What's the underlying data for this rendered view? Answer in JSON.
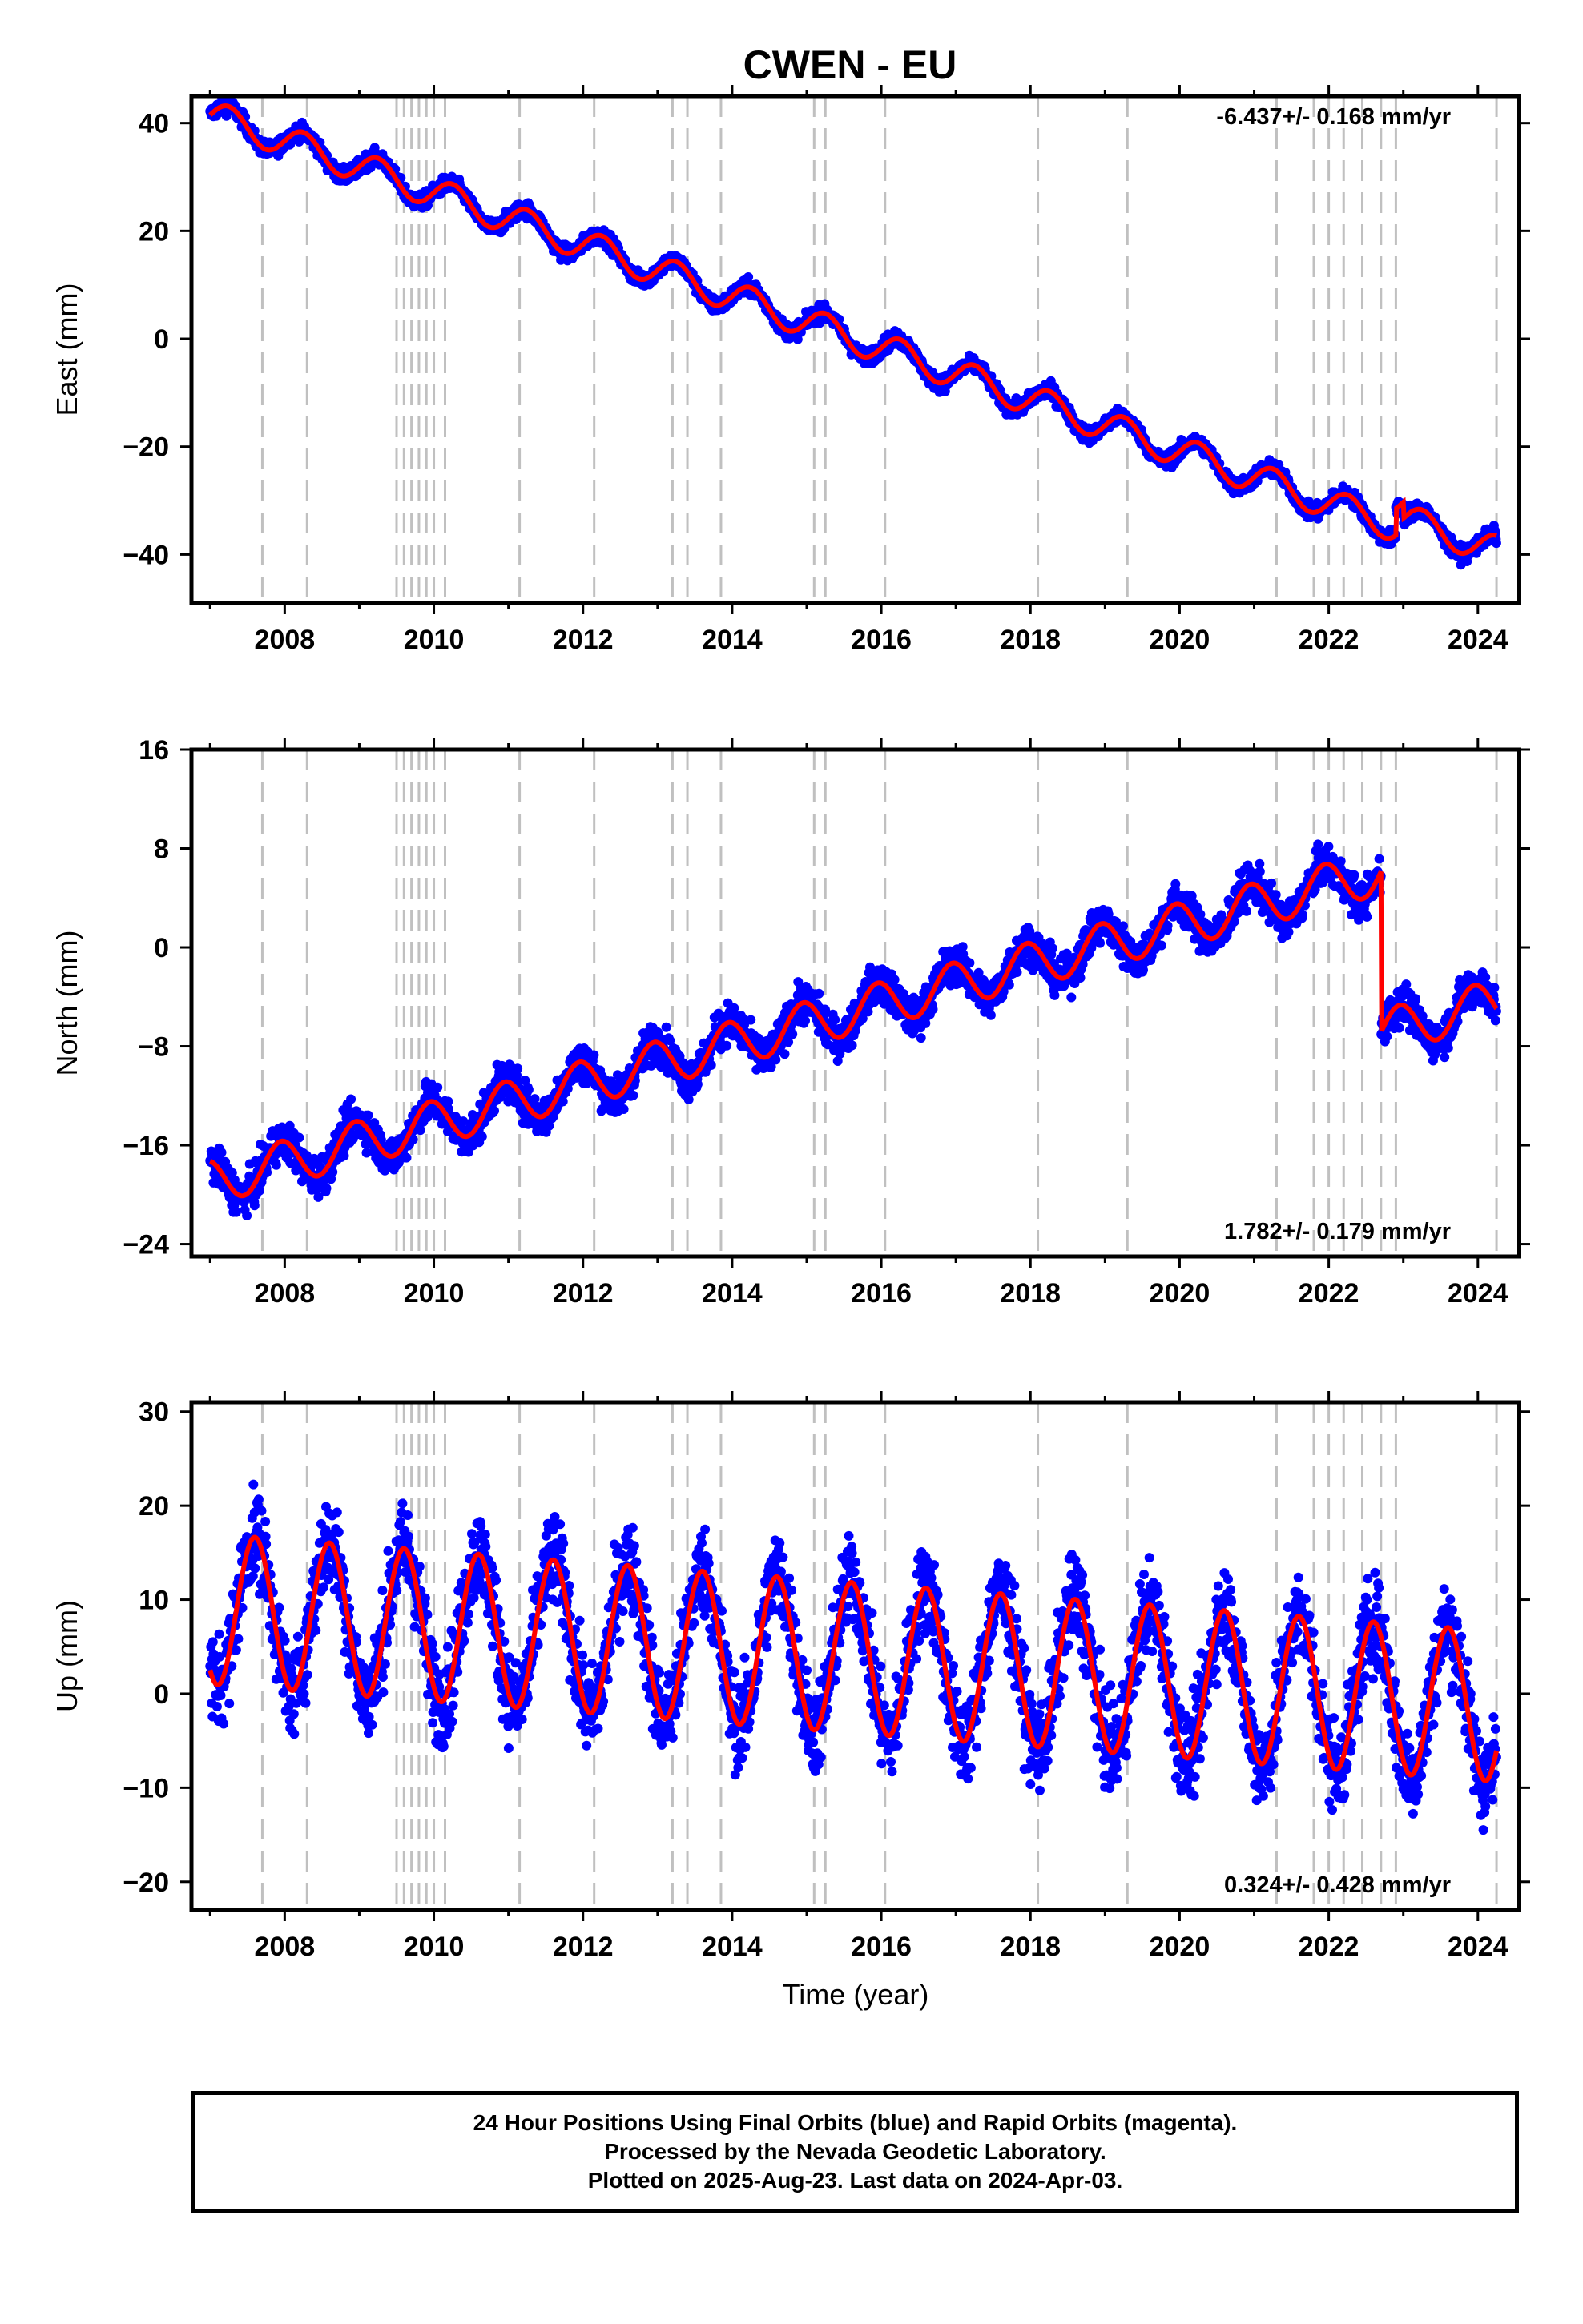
{
  "title": "CWEN - EU",
  "xlabel": "Time (year)",
  "footer": {
    "line1": "24 Hour Positions Using Final Orbits (blue) and Rapid Orbits (magenta).",
    "line2": "Processed by the Nevada Geodetic Laboratory.",
    "line3": "Plotted on 2025-Aug-23. Last data on 2024-Apr-03."
  },
  "colors": {
    "points": "#0000ff",
    "model": "#ff0000",
    "event_lines": "#c0c0c0",
    "frame": "#000000"
  },
  "chart_data": [
    {
      "type": "scatter",
      "panel": "east",
      "ylabel": "East (mm)",
      "rate_label": "-6.437+/- 0.168 mm/yr",
      "rate_position": "top-right",
      "xlim": [
        2006.75,
        2024.55
      ],
      "ylim": [
        -49,
        45
      ],
      "xticks": [
        2008,
        2010,
        2012,
        2014,
        2016,
        2018,
        2020,
        2022,
        2024
      ],
      "yticks": [
        -40,
        -20,
        0,
        20,
        40
      ],
      "ytick_labels": [
        "−40",
        "−20",
        "0",
        "20",
        "40"
      ],
      "model": {
        "start_year": 2007.0,
        "end_year": 2024.25,
        "start_value": 41.5,
        "rate": -4.8,
        "annual_amplitude": 2.8,
        "annual_phase": 0.0,
        "steps": [
          {
            "year": 2022.9,
            "value": 5.0
          },
          {
            "year": 2023.0,
            "value": -3.0
          }
        ]
      },
      "scatter_noise": 1.2
    },
    {
      "type": "scatter",
      "panel": "north",
      "ylabel": "North (mm)",
      "rate_label": "1.782+/- 0.179 mm/yr",
      "rate_position": "bottom-right",
      "xlim": [
        2006.75,
        2024.55
      ],
      "ylim": [
        -25,
        16
      ],
      "xticks": [
        2008,
        2010,
        2012,
        2014,
        2016,
        2018,
        2020,
        2022,
        2024
      ],
      "yticks": [
        -24,
        -16,
        -8,
        0,
        8,
        16
      ],
      "ytick_labels": [
        "−24",
        "−16",
        "−8",
        "0",
        "8",
        "16"
      ],
      "model": {
        "start_year": 2007.0,
        "end_year": 2024.25,
        "start_value": -19.0,
        "rate": 1.6,
        "annual_amplitude": 1.8,
        "annual_phase": 0.3,
        "steps": [
          {
            "year": 2022.7,
            "value": -13.0
          }
        ]
      },
      "scatter_noise": 1.3
    },
    {
      "type": "scatter",
      "panel": "up",
      "ylabel": "Up (mm)",
      "rate_label": "0.324+/- 0.428 mm/yr",
      "rate_position": "bottom-right",
      "xlim": [
        2006.75,
        2024.55
      ],
      "ylim": [
        -23,
        31
      ],
      "xticks": [
        2008,
        2010,
        2012,
        2014,
        2016,
        2018,
        2020,
        2022,
        2024
      ],
      "yticks": [
        -20,
        -10,
        0,
        10,
        20,
        30
      ],
      "ytick_labels": [
        "−20",
        "−10",
        "0",
        "10",
        "20",
        "30"
      ],
      "model": {
        "start_year": 2007.0,
        "end_year": 2024.25,
        "start_value": 9.0,
        "rate": -0.6,
        "annual_amplitude": 8.0,
        "annual_phase": -0.35,
        "steps": []
      },
      "scatter_noise": 4.0
    }
  ],
  "event_lines": [
    2007.7,
    2008.3,
    2009.5,
    2009.6,
    2009.7,
    2009.8,
    2009.9,
    2010.0,
    2010.15,
    2011.15,
    2012.15,
    2013.2,
    2013.4,
    2013.85,
    2015.1,
    2015.25,
    2016.05,
    2018.1,
    2019.3,
    2021.3,
    2021.8,
    2022.0,
    2022.2,
    2022.45,
    2022.7,
    2022.9,
    2024.25
  ]
}
